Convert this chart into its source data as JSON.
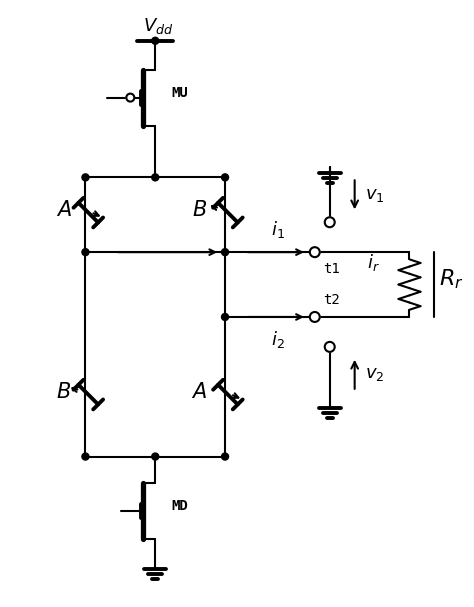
{
  "background": "#ffffff",
  "line_color": "#000000",
  "lw": 1.5,
  "tlw": 2.8,
  "fig_w": 4.74,
  "fig_h": 6.07,
  "dpi": 100,
  "labels": {
    "Vdd": "$V_{dd}$",
    "MU": "MU",
    "MD": "MD",
    "A": "$A$",
    "B": "$B$",
    "i1": "$i_1$",
    "i2": "$i_2$",
    "ir": "$i_r$",
    "v1": "$v_1$",
    "v2": "$v_2$",
    "Rr": "$R_r$",
    "t1": "t1",
    "t2": "t2"
  }
}
